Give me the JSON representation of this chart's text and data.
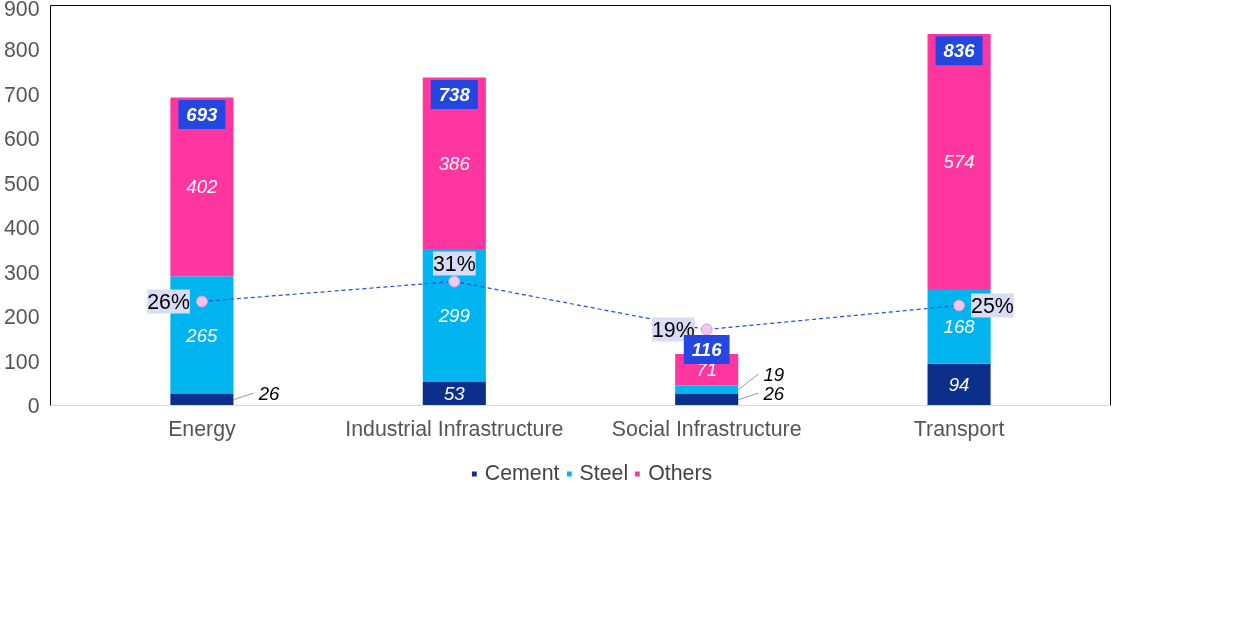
{
  "chart_data": {
    "type": "bar",
    "stacked": true,
    "categories": [
      "Energy",
      "Industrial Infrastructure",
      "Social Infrastructure",
      "Transport"
    ],
    "series": [
      {
        "name": "Cement",
        "color": "#0b2f8a",
        "values": [
          26,
          53,
          26,
          94
        ]
      },
      {
        "name": "Steel",
        "color": "#00b4f0",
        "values": [
          265,
          299,
          19,
          168
        ]
      },
      {
        "name": "Others",
        "color": "#ff35a0",
        "values": [
          402,
          386,
          71,
          574
        ]
      },
      {
        "type": "line",
        "axis": "y2",
        "color": "#1f4fe0",
        "line_style": "dashed",
        "marker": "circle",
        "values": [
          26,
          31,
          19,
          25
        ],
        "value_labels": [
          "26%",
          "31%",
          "19%",
          "25%"
        ]
      }
    ],
    "totals": [
      "693",
      "738",
      "116",
      "836"
    ],
    "data_labels": true,
    "y2lim": [
      0,
      100
    ],
    "ylim": [
      0,
      900
    ],
    "yticks": [
      0,
      100,
      200,
      300,
      400,
      500,
      600,
      700,
      800,
      900
    ],
    "grid": false,
    "legend": "bottom"
  }
}
